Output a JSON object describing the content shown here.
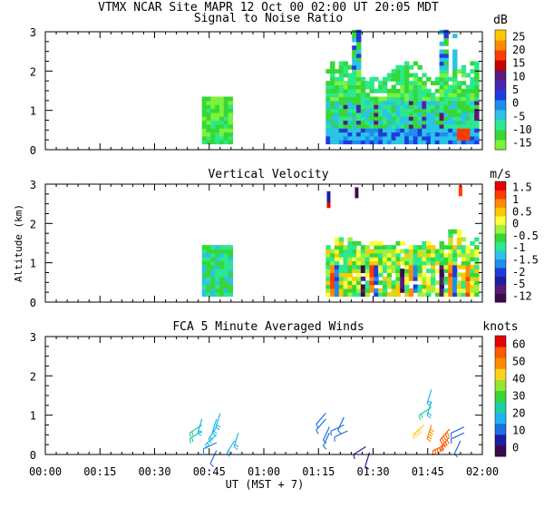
{
  "header": "VTMX  NCAR Site  MAPR 12 Oct 00  02:00 UT  20:05  MDT",
  "x_axis": {
    "label": "UT  (MST + 7)",
    "ticks": [
      "00:00",
      "00:15",
      "00:30",
      "00:45",
      "01:00",
      "01:15",
      "01:30",
      "01:45",
      "02:00"
    ],
    "range_minutes": [
      0,
      120
    ]
  },
  "y_axis_label": "Altitude (km)",
  "colors": {
    "snr": [
      "#7cf23c",
      "#37d737",
      "#2de88c",
      "#2bc3e8",
      "#1e8cf0",
      "#1e3cdc",
      "#4826b4",
      "#5a1a7a",
      "#c80000",
      "#ff3c00",
      "#ff8c00",
      "#ffc800"
    ],
    "velocity": [
      "#3c0a50",
      "#5a1a7a",
      "#1e1ea0",
      "#1e3cdc",
      "#1e8cf0",
      "#2bc3e8",
      "#2de88c",
      "#37d737",
      "#a0f03c",
      "#ffff3c",
      "#ffc800",
      "#ff8c00",
      "#ff3c00",
      "#e60000"
    ],
    "winds": [
      "#3c0a50",
      "#1e1ea0",
      "#1e6ee6",
      "#1eb4f0",
      "#1ecfa0",
      "#37d737",
      "#96e62d",
      "#ffd21e",
      "#ff8c00",
      "#ff5a00",
      "#e60000"
    ]
  },
  "chart_data": [
    {
      "type": "heatmap",
      "title": "Signal to Noise Ratio",
      "colorbar_unit": "dB",
      "colorbar_labels": [
        "25",
        "20",
        "15",
        "10",
        "5",
        "0",
        "-5",
        "-10",
        "-15"
      ],
      "ylim": [
        0,
        3
      ],
      "y_ticks": [
        "0",
        "1",
        "2",
        "3"
      ],
      "segments": [
        {
          "t_start": 43,
          "t_end": 51,
          "alt_min": 0.15,
          "alt_max": 1.35
        },
        {
          "t_start": 77,
          "t_end": 118,
          "alt_min": 0.15,
          "alt_max": 3.0
        }
      ]
    },
    {
      "type": "heatmap",
      "title": "Vertical Velocity",
      "colorbar_unit": "m/s",
      "colorbar_labels": [
        "1.5",
        "1",
        "0.5",
        "0",
        "-0.5",
        "-1",
        "-1.5",
        "-2",
        "-5",
        "-12"
      ],
      "ylim": [
        0,
        3
      ],
      "y_ticks": [
        "0",
        "1",
        "2",
        "3"
      ],
      "segments": [
        {
          "t_start": 43,
          "t_end": 51,
          "alt_min": 0.15,
          "alt_max": 1.4
        },
        {
          "t_start": 77,
          "t_end": 118,
          "alt_min": 0.15,
          "alt_max": 1.8
        }
      ]
    },
    {
      "type": "scatter",
      "title": "FCA 5 Minute Averaged Winds",
      "colorbar_unit": "knots",
      "colorbar_labels": [
        "60",
        "50",
        "40",
        "30",
        "20",
        "10",
        "0"
      ],
      "ylim": [
        0,
        3
      ],
      "y_ticks": [
        "0",
        "1",
        "2",
        "3"
      ],
      "barbs": [
        {
          "t": 43,
          "alt": 0.6,
          "speed": 22
        },
        {
          "t": 43,
          "alt": 0.75,
          "speed": 22
        },
        {
          "t": 43,
          "alt": 0.9,
          "speed": 20
        },
        {
          "t": 47,
          "alt": 0.1,
          "speed": 12
        },
        {
          "t": 47,
          "alt": 0.3,
          "speed": 14
        },
        {
          "t": 47,
          "alt": 0.5,
          "speed": 16
        },
        {
          "t": 47,
          "alt": 0.7,
          "speed": 18
        },
        {
          "t": 47,
          "alt": 0.9,
          "speed": 20
        },
        {
          "t": 48,
          "alt": 1.05,
          "speed": 20
        },
        {
          "t": 52,
          "alt": 0.35,
          "speed": 18
        },
        {
          "t": 53,
          "alt": 0.55,
          "speed": 20
        },
        {
          "t": 77,
          "alt": 1.05,
          "speed": 10
        },
        {
          "t": 77,
          "alt": 0.9,
          "speed": 10
        },
        {
          "t": 78,
          "alt": 0.7,
          "speed": 12
        },
        {
          "t": 78,
          "alt": 0.55,
          "speed": 12
        },
        {
          "t": 82,
          "alt": 0.95,
          "speed": 12
        },
        {
          "t": 82,
          "alt": 0.75,
          "speed": 14
        },
        {
          "t": 83,
          "alt": 0.6,
          "speed": 14
        },
        {
          "t": 88,
          "alt": 0.2,
          "speed": 8
        },
        {
          "t": 89,
          "alt": 0.05,
          "speed": 6
        },
        {
          "t": 106,
          "alt": 1.65,
          "speed": 20
        },
        {
          "t": 106,
          "alt": 1.35,
          "speed": 20
        },
        {
          "t": 106,
          "alt": 1.2,
          "speed": 22
        },
        {
          "t": 104,
          "alt": 0.75,
          "speed": 44
        },
        {
          "t": 106,
          "alt": 0.75,
          "speed": 48
        },
        {
          "t": 110,
          "alt": 0.25,
          "speed": 56
        },
        {
          "t": 111,
          "alt": 0.45,
          "speed": 52
        },
        {
          "t": 111,
          "alt": 0.65,
          "speed": 52
        },
        {
          "t": 115,
          "alt": 0.7,
          "speed": 14
        },
        {
          "t": 115,
          "alt": 0.55,
          "speed": 14
        },
        {
          "t": 114,
          "alt": 0.35,
          "speed": 12
        }
      ]
    }
  ]
}
